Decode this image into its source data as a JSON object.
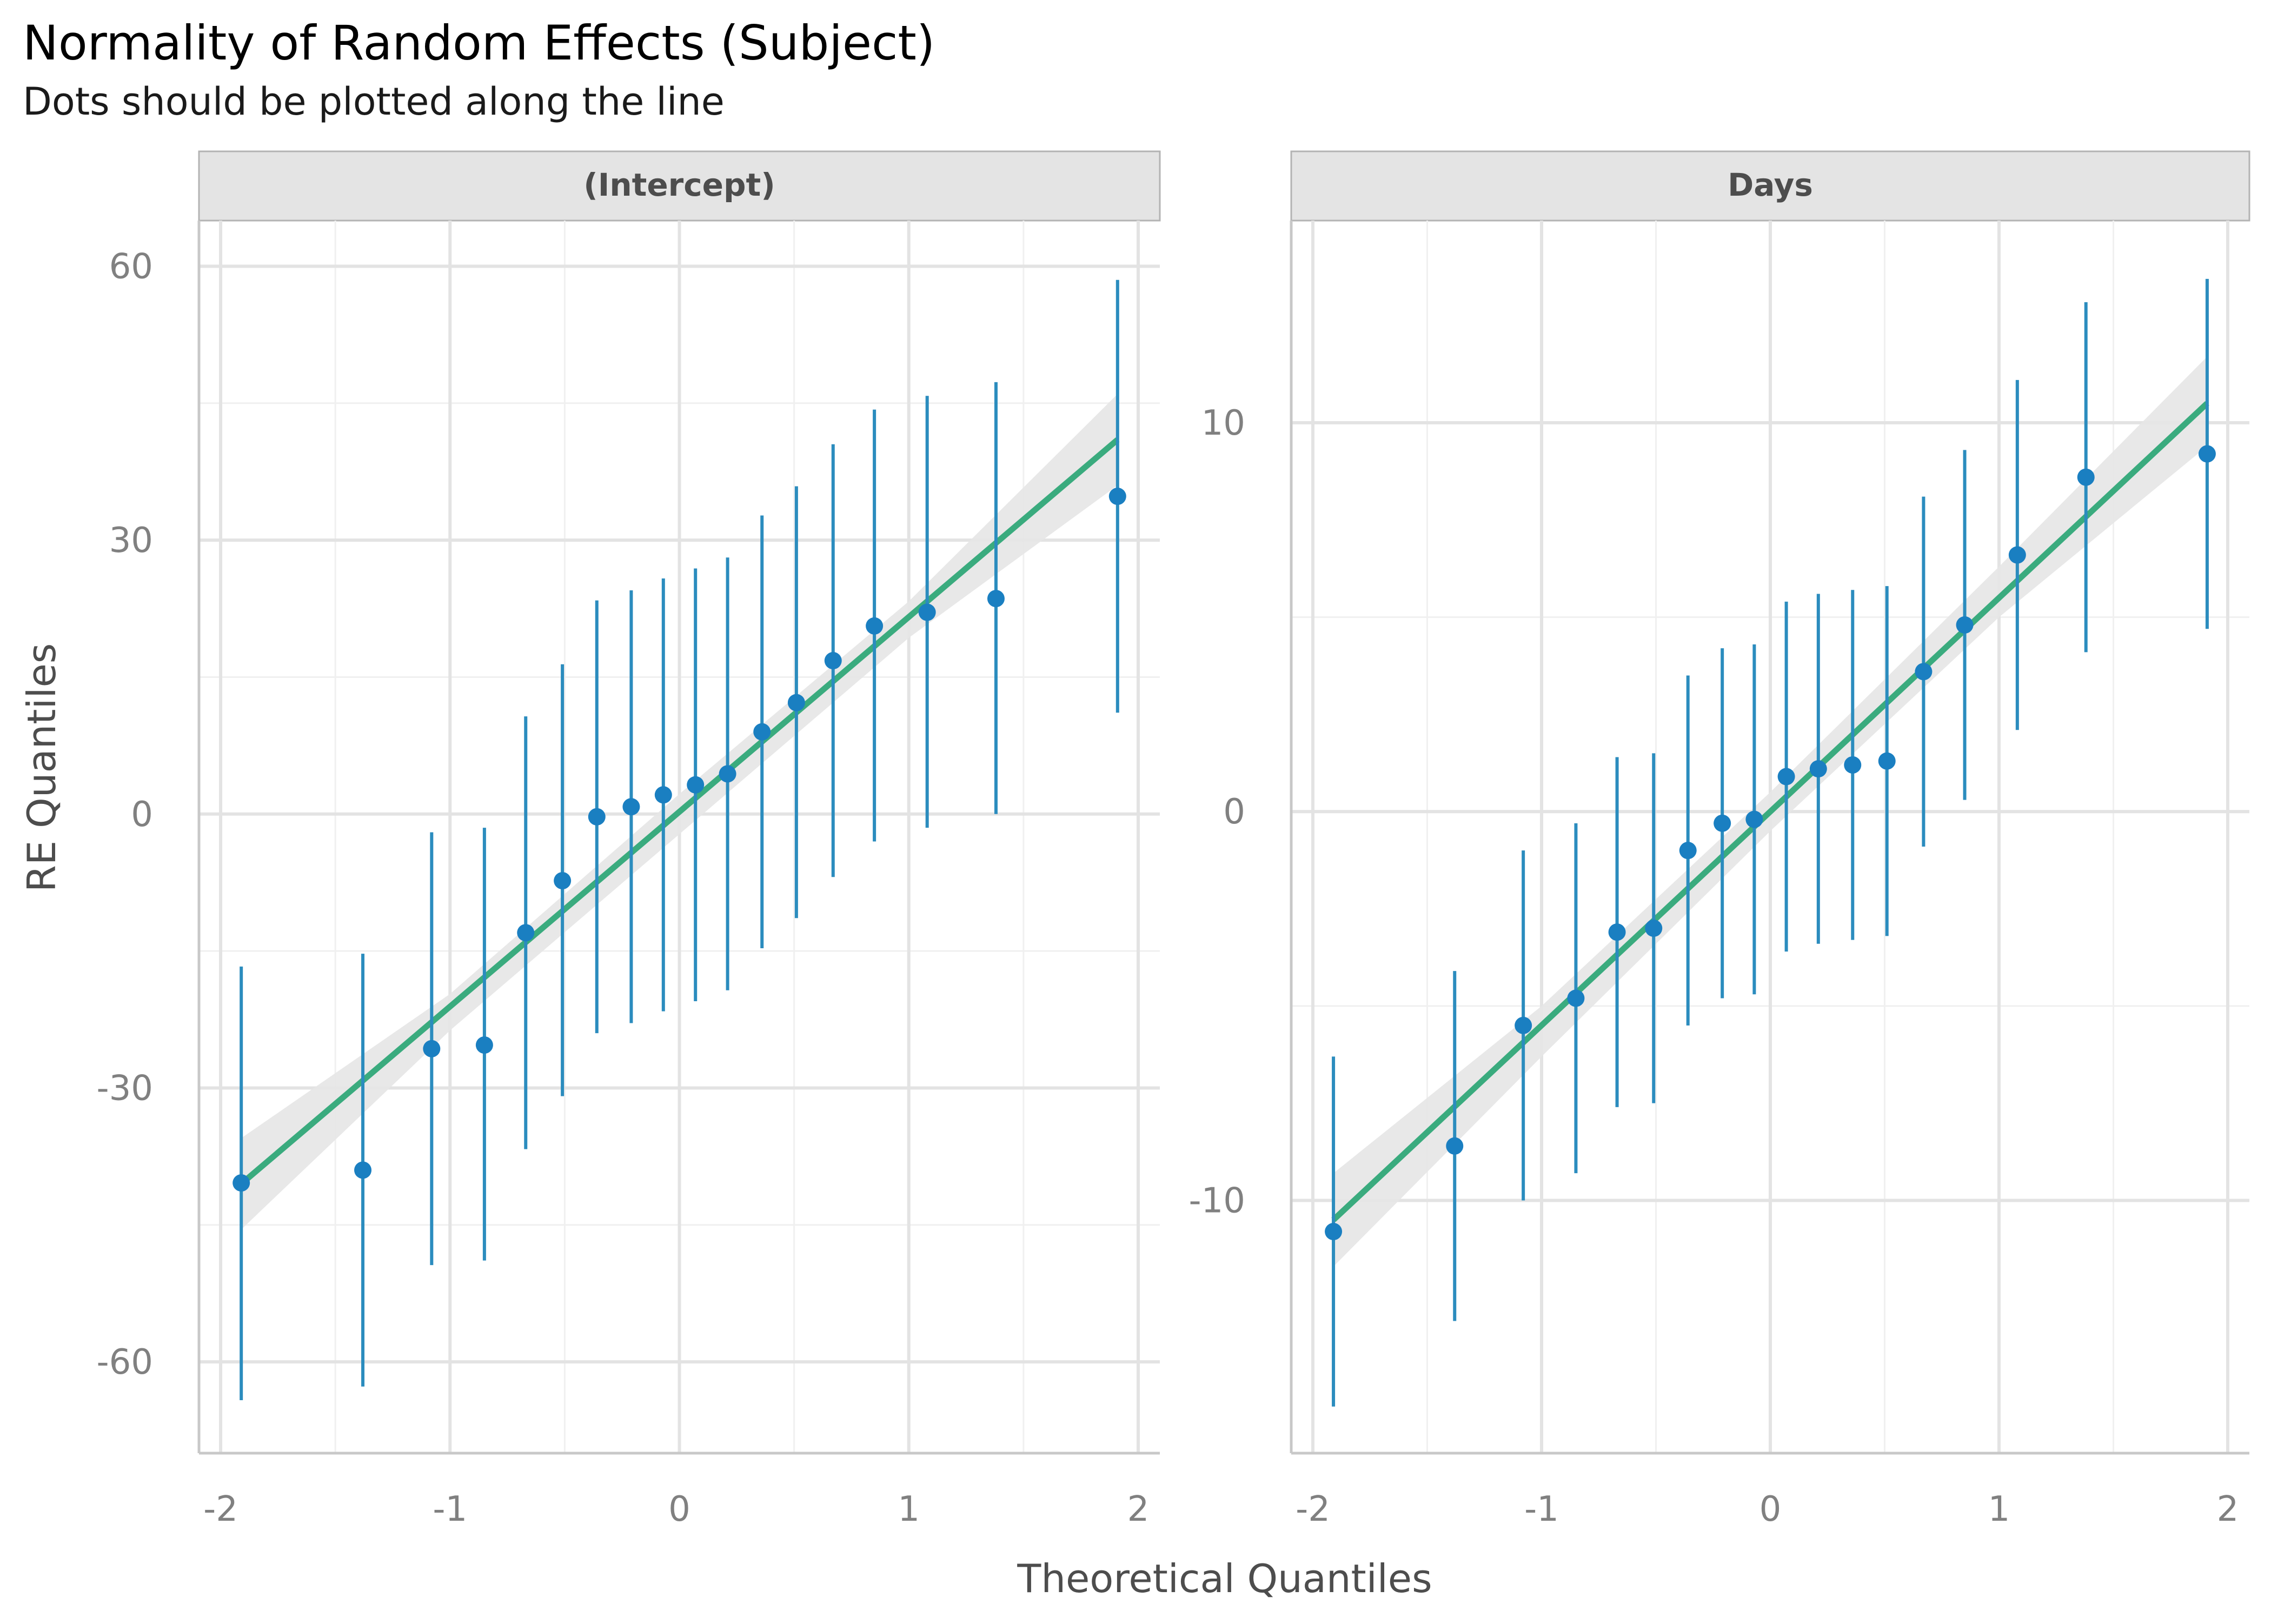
{
  "chart_data": {
    "type": "scatter",
    "title": "Normality of Random Effects (Subject)",
    "subtitle": "Dots should be plotted along the line",
    "xlabel": "Theoretical Quantiles",
    "ylabel": "RE Quantiles",
    "grid": true,
    "colors": {
      "points": "#1a7fc1",
      "errorbars": "#2b8cbe",
      "line": "#3aab7e",
      "band": "#e6e6e6",
      "strip": "#e4e4e4"
    },
    "panels": [
      {
        "strip": "(Intercept)",
        "xlim": [
          -2.0,
          2.0
        ],
        "ylim": [
          -70,
          65
        ],
        "xticks": [
          -2,
          -1,
          0,
          1,
          2
        ],
        "xtick_labels": [
          "-2",
          "-1",
          "0",
          "1",
          "2"
        ],
        "yticks": [
          -60,
          -30,
          0,
          30,
          60
        ],
        "ytick_labels": [
          "-60",
          "-30",
          "0",
          "30",
          "60"
        ],
        "x": [
          -1.91,
          -1.38,
          -1.08,
          -0.85,
          -0.67,
          -0.51,
          -0.36,
          -0.21,
          -0.07,
          0.07,
          0.21,
          0.36,
          0.51,
          0.67,
          0.85,
          1.08,
          1.38,
          1.91
        ],
        "y": [
          -40.4,
          -39.0,
          -25.7,
          -25.3,
          -13.0,
          -7.3,
          -0.3,
          0.8,
          2.1,
          3.2,
          4.4,
          9.0,
          12.2,
          16.8,
          20.6,
          22.1,
          23.6,
          34.8
        ],
        "err_low": [
          -64.2,
          -62.7,
          -49.4,
          -48.9,
          -36.7,
          -30.9,
          -24.0,
          -22.9,
          -21.6,
          -20.5,
          -19.3,
          -14.7,
          -11.4,
          -6.9,
          -3.0,
          -1.5,
          0.0,
          11.1
        ],
        "err_high": [
          -16.7,
          -15.3,
          -2.0,
          -1.5,
          10.7,
          16.4,
          23.4,
          24.5,
          25.8,
          26.9,
          28.1,
          32.7,
          35.9,
          40.5,
          44.3,
          45.8,
          47.3,
          58.5
        ],
        "line": {
          "x": [
            -1.91,
            1.91
          ],
          "y": [
            -40.5,
            41.0
          ]
        },
        "band": {
          "x": [
            -1.91,
            -1.0,
            0.0,
            1.0,
            1.91
          ],
          "low": [
            -45.5,
            -23.7,
            -2.2,
            19.3,
            36.0
          ],
          "high": [
            -35.5,
            -19.7,
            2.2,
            23.3,
            46.0
          ]
        }
      },
      {
        "strip": "Days",
        "xlim": [
          -2.0,
          2.0
        ],
        "ylim": [
          -16.5,
          15.2
        ],
        "xticks": [
          -2,
          -1,
          0,
          1,
          2
        ],
        "xtick_labels": [
          "-2",
          "-1",
          "0",
          "1",
          "2"
        ],
        "yticks": [
          -10,
          0,
          10
        ],
        "ytick_labels": [
          "-10",
          "0",
          "10"
        ],
        "x": [
          -1.91,
          -1.38,
          -1.08,
          -0.85,
          -0.67,
          -0.51,
          -0.36,
          -0.21,
          -0.07,
          0.07,
          0.21,
          0.36,
          0.51,
          0.67,
          0.85,
          1.08,
          1.38,
          1.91
        ],
        "y": [
          -10.8,
          -8.6,
          -5.5,
          -4.8,
          -3.1,
          -3.0,
          -1.0,
          -0.3,
          -0.2,
          0.9,
          1.1,
          1.2,
          1.3,
          3.6,
          4.8,
          6.6,
          8.6,
          9.2
        ],
        "err_low": [
          -15.3,
          -13.1,
          -10.0,
          -9.3,
          -7.6,
          -7.5,
          -5.5,
          -4.8,
          -4.7,
          -3.6,
          -3.4,
          -3.3,
          -3.2,
          -0.9,
          0.3,
          2.1,
          4.1,
          4.7
        ],
        "err_high": [
          -6.3,
          -4.1,
          -1.0,
          -0.3,
          1.4,
          1.5,
          3.5,
          4.2,
          4.3,
          5.4,
          5.6,
          5.7,
          5.8,
          8.1,
          9.3,
          11.1,
          13.1,
          13.7
        ],
        "line": {
          "x": [
            -1.91,
            1.91
          ],
          "y": [
            -10.5,
            10.5
          ]
        },
        "band": {
          "x": [
            -1.91,
            -1.0,
            0.0,
            1.0,
            1.91
          ],
          "low": [
            -11.7,
            -6.3,
            -0.5,
            5.0,
            9.4
          ],
          "high": [
            -9.3,
            -5.0,
            0.5,
            6.3,
            11.7
          ]
        }
      }
    ]
  }
}
